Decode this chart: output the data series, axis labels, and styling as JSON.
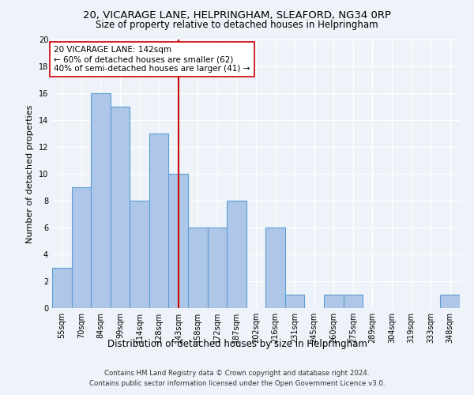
{
  "title_line1": "20, VICARAGE LANE, HELPRINGHAM, SLEAFORD, NG34 0RP",
  "title_line2": "Size of property relative to detached houses in Helpringham",
  "xlabel": "Distribution of detached houses by size in Helpringham",
  "ylabel": "Number of detached properties",
  "categories": [
    "55sqm",
    "70sqm",
    "84sqm",
    "99sqm",
    "114sqm",
    "128sqm",
    "143sqm",
    "158sqm",
    "172sqm",
    "187sqm",
    "202sqm",
    "216sqm",
    "231sqm",
    "245sqm",
    "260sqm",
    "275sqm",
    "289sqm",
    "304sqm",
    "319sqm",
    "333sqm",
    "348sqm"
  ],
  "values": [
    3,
    9,
    16,
    15,
    8,
    13,
    10,
    6,
    6,
    8,
    0,
    6,
    1,
    0,
    1,
    1,
    0,
    0,
    0,
    0,
    1
  ],
  "bar_color": "#aec6e8",
  "bar_edge_color": "#5a9fd4",
  "vline_color": "#cc0000",
  "vline_x_index": 6,
  "annotation_title": "20 VICARAGE LANE: 142sqm",
  "annotation_line2": "← 60% of detached houses are smaller (62)",
  "annotation_line3": "40% of semi-detached houses are larger (41) →",
  "ylim": [
    0,
    20
  ],
  "yticks": [
    0,
    2,
    4,
    6,
    8,
    10,
    12,
    14,
    16,
    18,
    20
  ],
  "footer_line1": "Contains HM Land Registry data © Crown copyright and database right 2024.",
  "footer_line2": "Contains public sector information licensed under the Open Government Licence v3.0.",
  "background_color": "#eef2f9",
  "plot_background_color": "#eef2f9",
  "title_fontsize": 9.5,
  "subtitle_fontsize": 8.5,
  "ylabel_fontsize": 8,
  "xlabel_fontsize": 8.5,
  "tick_fontsize": 7,
  "annotation_fontsize": 7.5,
  "footer_fontsize": 6.2
}
